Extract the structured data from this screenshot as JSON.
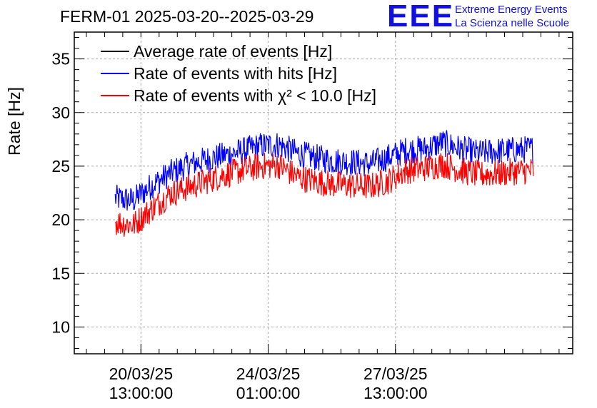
{
  "title": "FERM-01 2025-03-20--2025-03-29",
  "logo": {
    "mark": "EEE",
    "line1": "Extreme Energy Events",
    "line2": "La Scienza nelle Scuole"
  },
  "chart_data": {
    "type": "line",
    "title": "FERM-01 2025-03-20--2025-03-29",
    "ylabel": "Rate [Hz]",
    "xlabel": "",
    "ylim": [
      7.5,
      37.5
    ],
    "yticks": [
      10,
      15,
      20,
      25,
      30,
      35
    ],
    "xlim": [
      "2025-03-18 17:00",
      "2025-04-01 10:00"
    ],
    "xticks": [
      {
        "date": "20/03/25",
        "time": "13:00:00"
      },
      {
        "date": "24/03/25",
        "time": "01:00:00"
      },
      {
        "date": "27/03/25",
        "time": "13:00:00"
      }
    ],
    "grid": true,
    "legend_position": "top-left",
    "series": [
      {
        "name": "Average rate of events [Hz]",
        "color": "#000000",
        "x": [],
        "y": []
      },
      {
        "name": "Rate of events with hits [Hz]",
        "color": "#0000ff",
        "x": [
          "2025-03-19 20:00",
          "2025-03-20 08:00",
          "2025-03-20 20:00",
          "2025-03-21 08:00",
          "2025-03-21 20:00",
          "2025-03-22 08:00",
          "2025-03-22 20:00",
          "2025-03-23 08:00",
          "2025-03-23 20:00",
          "2025-03-24 08:00",
          "2025-03-24 20:00",
          "2025-03-25 08:00",
          "2025-03-25 20:00",
          "2025-03-26 08:00",
          "2025-03-26 20:00",
          "2025-03-27 08:00",
          "2025-03-27 20:00",
          "2025-03-28 08:00",
          "2025-03-28 20:00",
          "2025-03-29 08:00",
          "2025-03-29 20:00",
          "2025-03-30 08:00",
          "2025-03-30 20:00",
          "2025-03-31 08:00"
        ],
        "y": [
          22.0,
          21.8,
          23.2,
          24.3,
          25.1,
          25.6,
          26.0,
          26.4,
          26.9,
          27.0,
          26.2,
          25.8,
          25.5,
          25.4,
          25.2,
          25.8,
          26.5,
          26.6,
          27.2,
          26.6,
          26.2,
          26.4,
          26.5,
          26.6
        ]
      },
      {
        "name": "Rate of events with χ² < 10.0 [Hz]",
        "color": "#ff0000",
        "x": [
          "2025-03-19 20:00",
          "2025-03-20 08:00",
          "2025-03-20 20:00",
          "2025-03-21 08:00",
          "2025-03-21 20:00",
          "2025-03-22 08:00",
          "2025-03-22 20:00",
          "2025-03-23 08:00",
          "2025-03-23 20:00",
          "2025-03-24 08:00",
          "2025-03-24 20:00",
          "2025-03-25 08:00",
          "2025-03-25 20:00",
          "2025-03-26 08:00",
          "2025-03-26 20:00",
          "2025-03-27 08:00",
          "2025-03-27 20:00",
          "2025-03-28 08:00",
          "2025-03-28 20:00",
          "2025-03-29 08:00",
          "2025-03-29 20:00",
          "2025-03-30 08:00",
          "2025-03-30 20:00",
          "2025-03-31 08:00"
        ],
        "y": [
          19.8,
          19.5,
          21.0,
          22.4,
          23.0,
          23.6,
          24.2,
          24.6,
          25.0,
          25.1,
          24.0,
          23.6,
          23.3,
          23.2,
          23.1,
          23.6,
          24.6,
          24.8,
          25.2,
          24.6,
          24.2,
          24.3,
          24.5,
          24.6
        ]
      }
    ],
    "legend": [
      {
        "label": "Average rate of events [Hz]",
        "color": "#000000"
      },
      {
        "label": "Rate of events with hits [Hz]",
        "color": "#0000ff"
      },
      {
        "label": "Rate of events with χ² < 10.0 [Hz]",
        "color": "#ff0000"
      }
    ]
  }
}
